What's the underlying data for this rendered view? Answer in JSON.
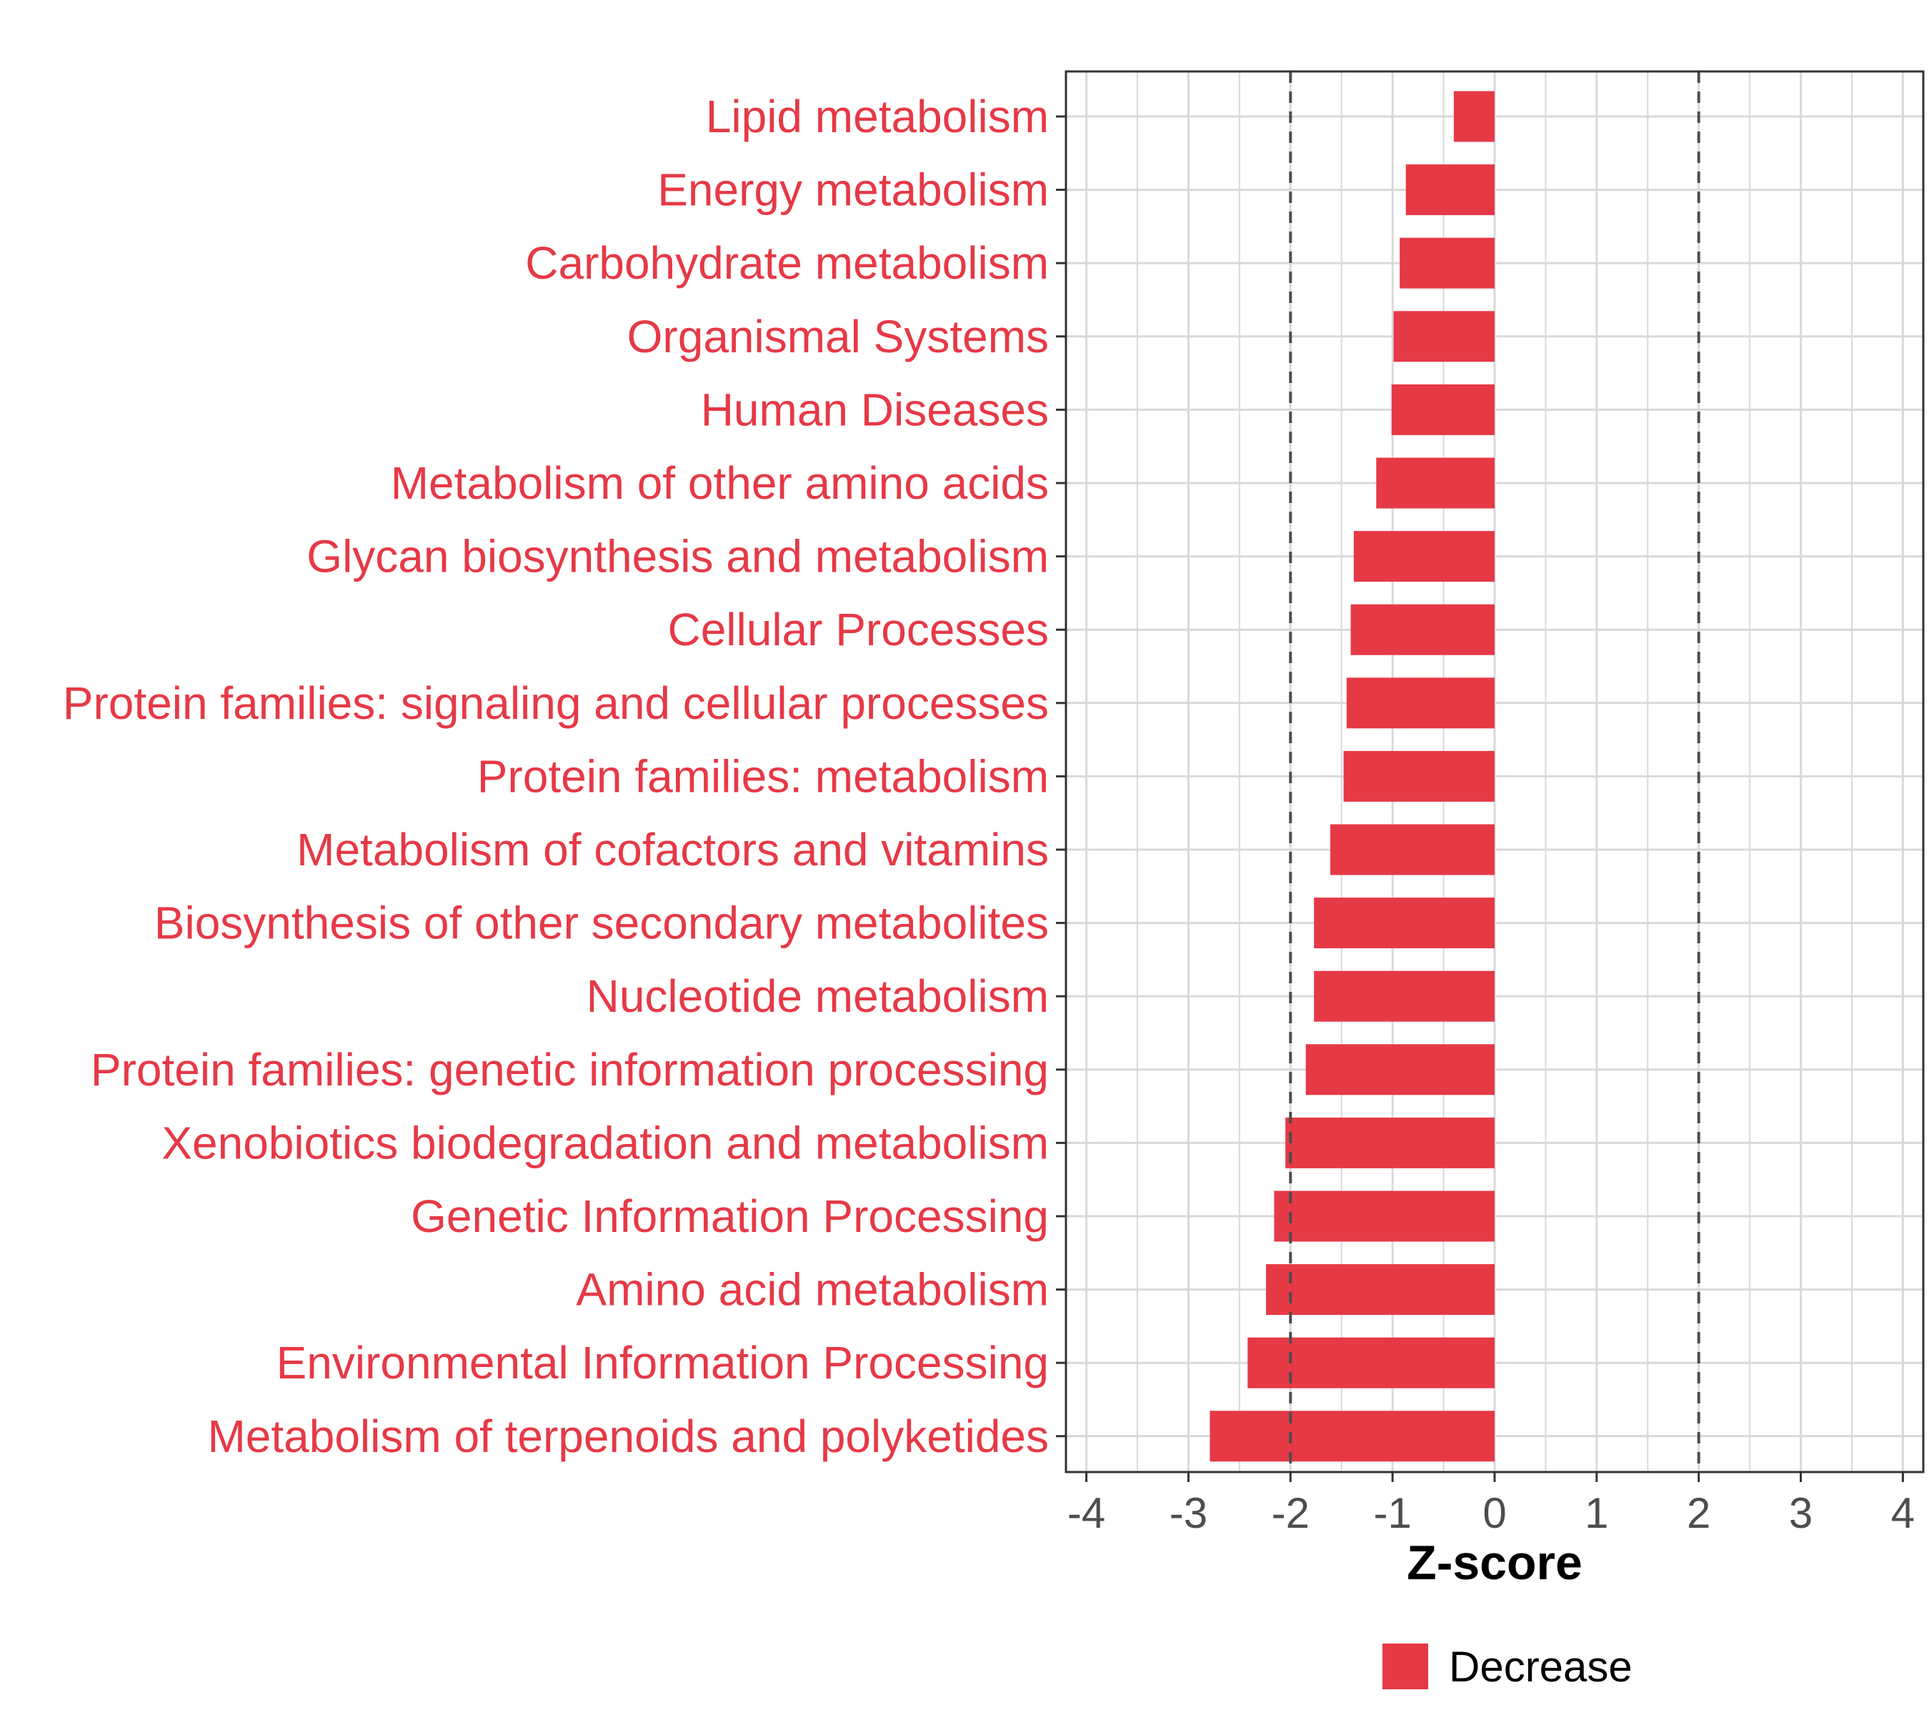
{
  "chart_data": {
    "type": "bar",
    "orientation": "horizontal",
    "title": "",
    "xlabel": "Z-score",
    "ylabel": "",
    "xlim": [
      -4.2,
      4.2
    ],
    "xticks": [
      -4,
      -3,
      -2,
      -1,
      0,
      1,
      2,
      3,
      4
    ],
    "xtick_labels": [
      "-4",
      "-3",
      "-2",
      "-1",
      "0",
      "1",
      "2",
      "3",
      "4"
    ],
    "reference_lines": [
      -2,
      2
    ],
    "grid": true,
    "categories": [
      "Lipid metabolism",
      "Energy metabolism",
      "Carbohydrate metabolism",
      "Organismal Systems",
      "Human Diseases",
      "Metabolism of other amino acids",
      "Glycan biosynthesis and metabolism",
      "Cellular Processes",
      "Protein families: signaling and cellular processes",
      "Protein families: metabolism",
      "Metabolism of cofactors and vitamins",
      "Biosynthesis of other secondary metabolites",
      "Nucleotide metabolism",
      "Protein families: genetic information processing",
      "Xenobiotics biodegradation and metabolism",
      "Genetic Information Processing",
      "Amino acid metabolism",
      "Environmental Information Processing",
      "Metabolism of terpenoids and polyketides"
    ],
    "series": [
      {
        "name": "Decrease",
        "color": "#E63946",
        "values": [
          -0.4,
          -0.87,
          -0.93,
          -0.99,
          -1.01,
          -1.16,
          -1.38,
          -1.41,
          -1.45,
          -1.48,
          -1.61,
          -1.77,
          -1.77,
          -1.85,
          -2.05,
          -2.16,
          -2.24,
          -2.42,
          -2.79
        ]
      }
    ],
    "legend": {
      "position": "bottom",
      "entries": [
        "Decrease"
      ]
    }
  },
  "colors": {
    "bar": "#E63946",
    "category_text": "#E63946",
    "grid": "#d9d9d9",
    "reference_line": "#4d4d4d",
    "panel_border": "#333333"
  }
}
